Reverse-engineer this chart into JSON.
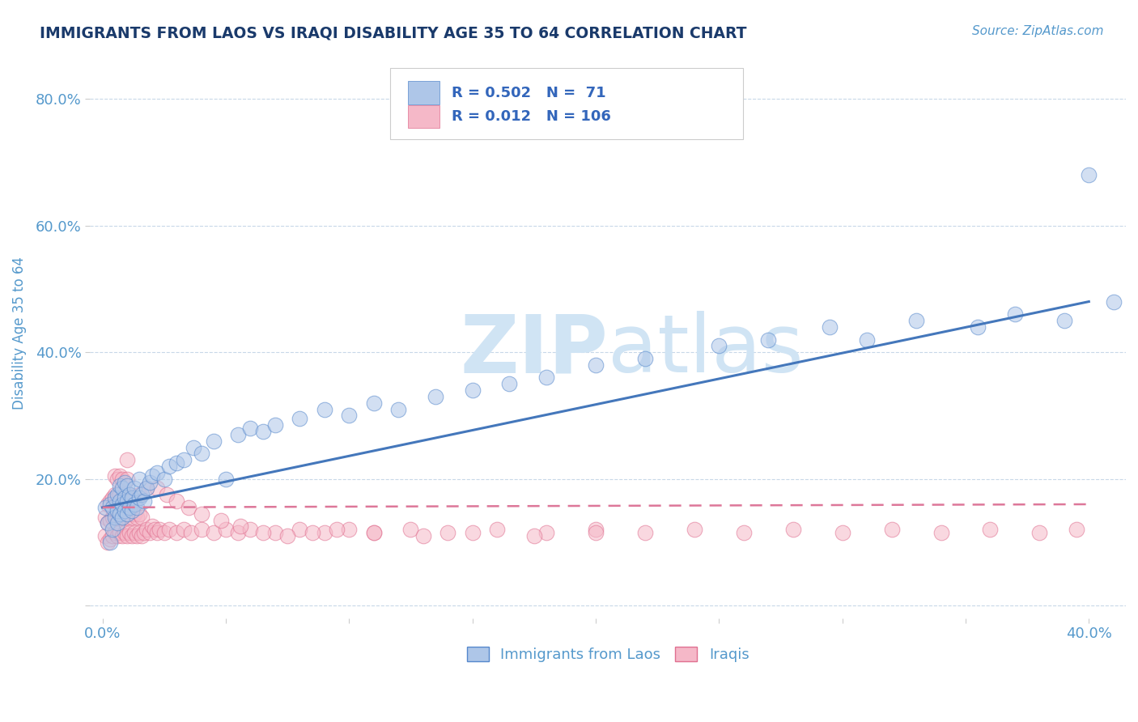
{
  "title": "IMMIGRANTS FROM LAOS VS IRAQI DISABILITY AGE 35 TO 64 CORRELATION CHART",
  "source_text": "Source: ZipAtlas.com",
  "ylabel": "Disability Age 35 to 64",
  "xlim": [
    -0.005,
    0.415
  ],
  "ylim": [
    -0.02,
    0.88
  ],
  "xticks": [
    0.0,
    0.05,
    0.1,
    0.15,
    0.2,
    0.25,
    0.3,
    0.35,
    0.4
  ],
  "xticklabels": [
    "0.0%",
    "",
    "",
    "",
    "",
    "",
    "",
    "",
    "40.0%"
  ],
  "yticks": [
    0.0,
    0.2,
    0.4,
    0.6,
    0.8
  ],
  "yticklabels": [
    "",
    "20.0%",
    "40.0%",
    "60.0%",
    "80.0%"
  ],
  "laos_color": "#aec6e8",
  "laos_edge_color": "#5588cc",
  "iraqi_color": "#f5b8c8",
  "iraqi_edge_color": "#e07090",
  "laos_R": 0.502,
  "laos_N": 71,
  "iraqi_R": 0.012,
  "iraqi_N": 106,
  "laos_line_color": "#4477bb",
  "iraqi_line_color": "#dd7799",
  "title_color": "#1a3a6b",
  "tick_color": "#5599cc",
  "grid_color": "#c8d8e8",
  "watermark_color": "#d0e4f4",
  "laos_scatter_x": [
    0.001,
    0.002,
    0.003,
    0.003,
    0.004,
    0.004,
    0.005,
    0.005,
    0.006,
    0.006,
    0.006,
    0.007,
    0.007,
    0.007,
    0.008,
    0.008,
    0.008,
    0.009,
    0.009,
    0.009,
    0.01,
    0.01,
    0.01,
    0.011,
    0.011,
    0.012,
    0.012,
    0.013,
    0.013,
    0.014,
    0.015,
    0.015,
    0.016,
    0.017,
    0.018,
    0.019,
    0.02,
    0.022,
    0.025,
    0.027,
    0.03,
    0.033,
    0.037,
    0.04,
    0.045,
    0.05,
    0.055,
    0.06,
    0.065,
    0.07,
    0.08,
    0.09,
    0.1,
    0.11,
    0.12,
    0.135,
    0.15,
    0.165,
    0.18,
    0.2,
    0.22,
    0.25,
    0.27,
    0.295,
    0.31,
    0.33,
    0.355,
    0.37,
    0.39,
    0.4,
    0.41
  ],
  "laos_scatter_y": [
    0.155,
    0.13,
    0.16,
    0.1,
    0.12,
    0.155,
    0.14,
    0.17,
    0.13,
    0.15,
    0.175,
    0.145,
    0.165,
    0.19,
    0.14,
    0.16,
    0.185,
    0.15,
    0.17,
    0.195,
    0.145,
    0.165,
    0.19,
    0.155,
    0.175,
    0.15,
    0.17,
    0.16,
    0.185,
    0.155,
    0.17,
    0.2,
    0.175,
    0.165,
    0.185,
    0.195,
    0.205,
    0.21,
    0.2,
    0.22,
    0.225,
    0.23,
    0.25,
    0.24,
    0.26,
    0.2,
    0.27,
    0.28,
    0.275,
    0.285,
    0.295,
    0.31,
    0.3,
    0.32,
    0.31,
    0.33,
    0.34,
    0.35,
    0.36,
    0.38,
    0.39,
    0.41,
    0.42,
    0.44,
    0.42,
    0.45,
    0.44,
    0.46,
    0.45,
    0.68,
    0.48
  ],
  "iraqi_scatter_x": [
    0.001,
    0.001,
    0.002,
    0.002,
    0.002,
    0.003,
    0.003,
    0.003,
    0.004,
    0.004,
    0.004,
    0.005,
    0.005,
    0.005,
    0.005,
    0.006,
    0.006,
    0.006,
    0.006,
    0.007,
    0.007,
    0.007,
    0.007,
    0.008,
    0.008,
    0.008,
    0.008,
    0.009,
    0.009,
    0.009,
    0.01,
    0.01,
    0.01,
    0.01,
    0.01,
    0.011,
    0.011,
    0.011,
    0.012,
    0.012,
    0.012,
    0.013,
    0.013,
    0.014,
    0.014,
    0.015,
    0.015,
    0.016,
    0.016,
    0.017,
    0.018,
    0.019,
    0.02,
    0.021,
    0.022,
    0.023,
    0.025,
    0.027,
    0.03,
    0.033,
    0.036,
    0.04,
    0.045,
    0.05,
    0.055,
    0.06,
    0.07,
    0.08,
    0.09,
    0.1,
    0.11,
    0.125,
    0.14,
    0.16,
    0.18,
    0.2,
    0.22,
    0.24,
    0.26,
    0.28,
    0.3,
    0.32,
    0.34,
    0.36,
    0.38,
    0.395,
    0.01,
    0.012,
    0.015,
    0.018,
    0.022,
    0.026,
    0.03,
    0.035,
    0.04,
    0.048,
    0.056,
    0.065,
    0.075,
    0.085,
    0.095,
    0.11,
    0.13,
    0.15,
    0.175,
    0.2
  ],
  "iraqi_scatter_y": [
    0.11,
    0.14,
    0.1,
    0.13,
    0.16,
    0.105,
    0.135,
    0.165,
    0.11,
    0.14,
    0.17,
    0.115,
    0.145,
    0.175,
    0.205,
    0.11,
    0.14,
    0.17,
    0.2,
    0.115,
    0.145,
    0.175,
    0.205,
    0.11,
    0.14,
    0.17,
    0.2,
    0.115,
    0.145,
    0.175,
    0.11,
    0.14,
    0.17,
    0.2,
    0.23,
    0.115,
    0.145,
    0.175,
    0.11,
    0.14,
    0.17,
    0.115,
    0.145,
    0.11,
    0.14,
    0.115,
    0.145,
    0.11,
    0.14,
    0.115,
    0.12,
    0.115,
    0.125,
    0.12,
    0.115,
    0.12,
    0.115,
    0.12,
    0.115,
    0.12,
    0.115,
    0.12,
    0.115,
    0.12,
    0.115,
    0.12,
    0.115,
    0.12,
    0.115,
    0.12,
    0.115,
    0.12,
    0.115,
    0.12,
    0.115,
    0.12,
    0.115,
    0.12,
    0.115,
    0.12,
    0.115,
    0.12,
    0.115,
    0.12,
    0.115,
    0.12,
    0.155,
    0.165,
    0.175,
    0.185,
    0.185,
    0.175,
    0.165,
    0.155,
    0.145,
    0.135,
    0.125,
    0.115,
    0.11,
    0.115,
    0.12,
    0.115,
    0.11,
    0.115,
    0.11,
    0.115
  ]
}
